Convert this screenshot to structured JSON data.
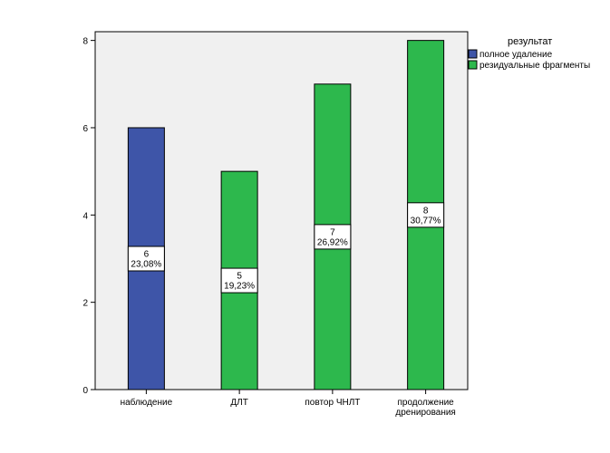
{
  "chart_data": {
    "type": "bar",
    "categories": [
      "наблюдение",
      "ДЛТ",
      "повтор ЧНЛТ",
      "продолжение дренирования"
    ],
    "category_lines": [
      [
        "наблюдение"
      ],
      [
        "ДЛТ"
      ],
      [
        "повтор ЧНЛТ"
      ],
      [
        "продолжение",
        "дренирования"
      ]
    ],
    "series": [
      {
        "name": "полное удаление",
        "color": "#3e55a8",
        "values": [
          6,
          0,
          0,
          0
        ]
      },
      {
        "name": "резидуальные фрагменты",
        "color": "#2db84d",
        "values": [
          0,
          5,
          7,
          8
        ]
      }
    ],
    "data_labels": [
      {
        "count": "6",
        "percent": "23,08%"
      },
      {
        "count": "5",
        "percent": "19,23%"
      },
      {
        "count": "7",
        "percent": "26,92%"
      },
      {
        "count": "8",
        "percent": "30,77%"
      }
    ],
    "y_ticks": [
      "0",
      "2",
      "4",
      "6",
      "8"
    ],
    "ylim": [
      0,
      8.2
    ],
    "legend_title": "результат",
    "legend_position": "top-right",
    "plot_background": "#f0f0f0",
    "grid": false,
    "title": "",
    "xlabel": "",
    "ylabel": ""
  }
}
